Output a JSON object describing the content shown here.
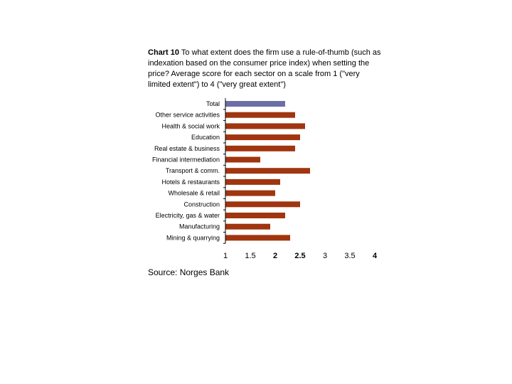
{
  "title_bold": "Chart 10",
  "title_rest": " To what extent does the firm use a rule-of-thumb (such as indexation based on the consumer price index) when setting the price? Average score for each sector on a scale from 1 (\"very limited extent\") to 4 (\"very great extent\")",
  "source": "Source: Norges Bank",
  "chart_data": {
    "type": "bar",
    "orientation": "horizontal",
    "categories": [
      "Total",
      "Other service activities",
      "Health & social work",
      "Education",
      "Real estate & business",
      "Financial intermediation",
      "Transport & comm.",
      "Hotels & restaurants",
      "Wholesale & retail",
      "Construction",
      "Electricity, gas & water",
      "Manufacturing",
      "Mining & quarrying"
    ],
    "values": [
      2.2,
      2.4,
      2.6,
      2.5,
      2.4,
      1.7,
      2.7,
      2.1,
      2.0,
      2.5,
      2.2,
      1.9,
      2.3
    ],
    "colors": [
      "#6b6fa6",
      "#a0350f",
      "#a0350f",
      "#a0350f",
      "#a0350f",
      "#a0350f",
      "#a0350f",
      "#a0350f",
      "#a0350f",
      "#a0350f",
      "#a0350f",
      "#a0350f",
      "#a0350f"
    ],
    "xlim": [
      1,
      4
    ],
    "xticks": [
      "1",
      "1.5",
      "2",
      "2.5",
      "3",
      "3.5",
      "4"
    ],
    "bold_ticks": [
      "2",
      "2.5",
      "4"
    ],
    "grid": false
  }
}
